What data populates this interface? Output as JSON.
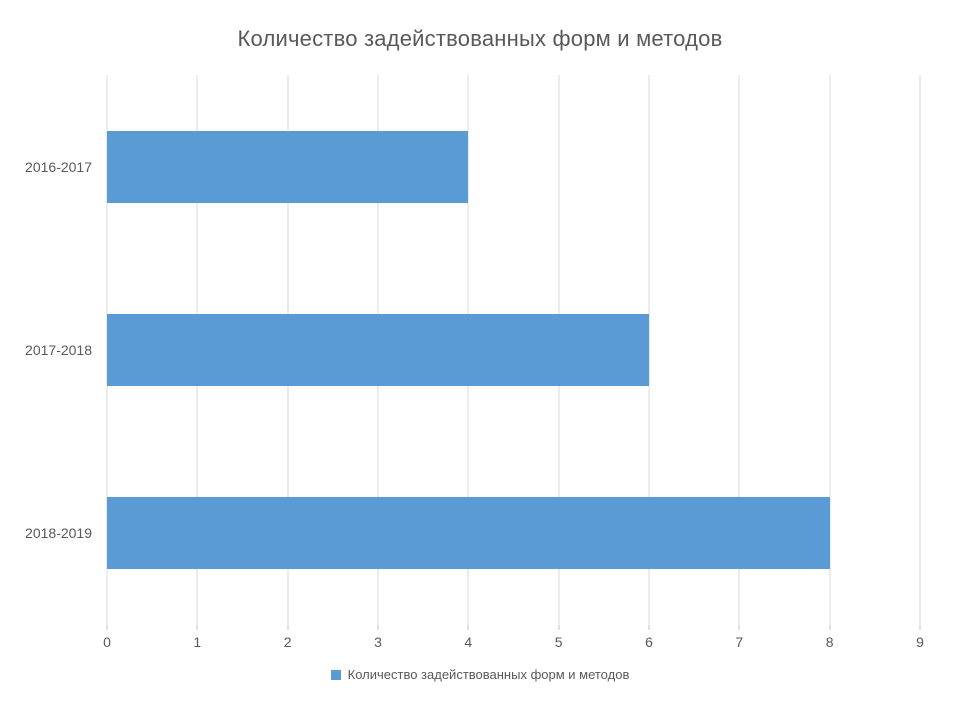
{
  "chart_data": {
    "type": "bar",
    "orientation": "horizontal",
    "title": "Количество задействованных форм и методов",
    "categories": [
      "2016-2017",
      "2017-2018",
      "2018-2019"
    ],
    "series": [
      {
        "name": "Количество задействованных форм и методов",
        "values": [
          4,
          6,
          8
        ]
      }
    ],
    "xlabel": "",
    "ylabel": "",
    "xlim": [
      0,
      9
    ],
    "x_ticks": [
      0,
      1,
      2,
      3,
      4,
      5,
      6,
      7,
      8,
      9
    ],
    "grid": "vertical-only",
    "legend_position": "bottom-center",
    "colors": {
      "bar": "#5b9bd5",
      "text": "#595959",
      "gridline": "#d9d9d9",
      "background": "#ffffff"
    }
  },
  "legend": {
    "label": "Количество задействованных форм и методов"
  }
}
